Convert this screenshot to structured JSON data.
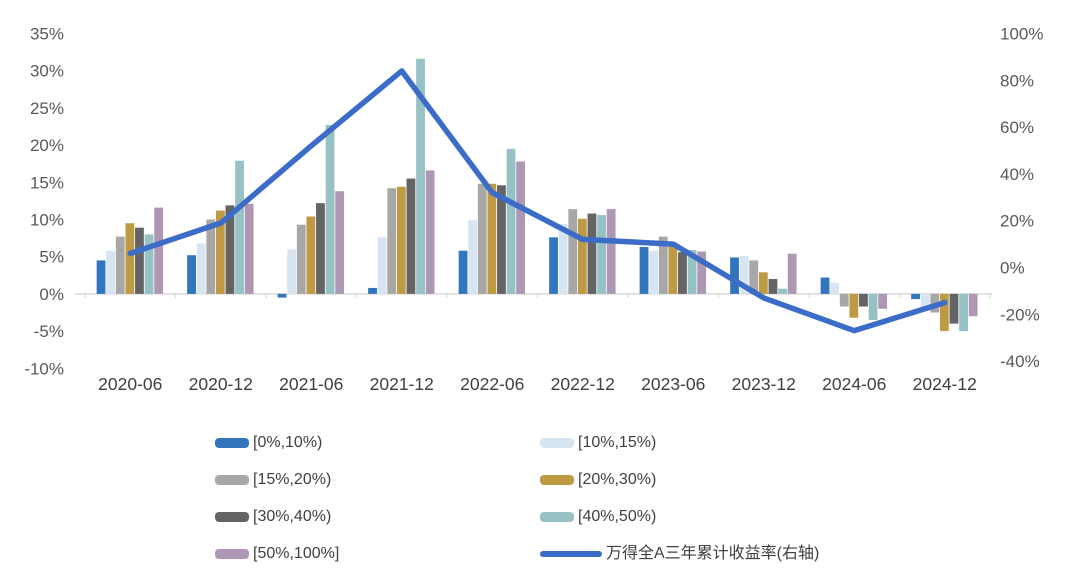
{
  "chart_data": {
    "type": "combo-bar-line",
    "title": "",
    "grid": false,
    "legend_position": "bottom",
    "background_color": "#ffffff",
    "axis_line_color": "#d9d9d9",
    "tick_label_color": "#595959",
    "x_label_color": "#404040",
    "categories": [
      "2020-06",
      "2020-12",
      "2021-06",
      "2021-12",
      "2022-06",
      "2022-12",
      "2023-06",
      "2023-12",
      "2024-06",
      "2024-12"
    ],
    "bar_series": [
      {
        "name": "[0%,10%)",
        "color": "#3175BD",
        "values": [
          4.5,
          5.2,
          -0.5,
          0.8,
          5.8,
          7.6,
          6.3,
          4.9,
          2.2,
          -0.7
        ]
      },
      {
        "name": "[10%,15%)",
        "color": "#D7E4F2",
        "values": [
          5.8,
          6.8,
          6.0,
          7.6,
          9.9,
          9.4,
          5.8,
          5.1,
          1.5,
          -2.0
        ]
      },
      {
        "name": "[15%,20%)",
        "color": "#A7A7A7",
        "values": [
          7.7,
          10.0,
          9.3,
          14.2,
          14.8,
          11.4,
          7.7,
          4.5,
          -1.7,
          -2.5
        ]
      },
      {
        "name": "[20%,30%)",
        "color": "#BE9A44",
        "values": [
          9.5,
          11.2,
          10.4,
          14.4,
          14.8,
          10.1,
          6.5,
          2.9,
          -3.2,
          -5.0
        ]
      },
      {
        "name": "[30%,40%)",
        "color": "#646464",
        "values": [
          8.9,
          11.9,
          12.2,
          15.5,
          14.6,
          10.8,
          5.6,
          2.0,
          -1.7,
          -4.0
        ]
      },
      {
        "name": "[40%,50%)",
        "color": "#96C1C5",
        "values": [
          8.0,
          17.9,
          22.7,
          31.6,
          19.5,
          10.6,
          5.9,
          0.7,
          -3.5,
          -5.0
        ]
      },
      {
        "name": "[50%,100%]",
        "color": "#AD97B3",
        "values": [
          11.6,
          12.1,
          13.8,
          16.6,
          17.8,
          11.4,
          5.7,
          5.4,
          -2.0,
          -3.0
        ]
      }
    ],
    "line_series": {
      "name": "万得全A三年累计收益率(右轴)",
      "color": "#3A6CC8",
      "axis": "right",
      "values": [
        6,
        19,
        52,
        84,
        32,
        12,
        10,
        -13,
        -27,
        -15
      ]
    },
    "left_axis": {
      "tick_labels": [
        "35%",
        "30%",
        "25%",
        "20%",
        "15%",
        "10%",
        "5%",
        "0%",
        "-5%",
        "-10%"
      ],
      "tick_values": [
        35,
        30,
        25,
        20,
        15,
        10,
        5,
        0,
        -5,
        -10
      ],
      "min": -10,
      "max": 35
    },
    "right_axis": {
      "tick_labels": [
        "100%",
        "80%",
        "60%",
        "40%",
        "20%",
        "0%",
        "-20%",
        "-40%"
      ],
      "tick_values": [
        100,
        80,
        60,
        40,
        20,
        0,
        -20,
        -40
      ],
      "min": -40,
      "max": 100
    }
  }
}
